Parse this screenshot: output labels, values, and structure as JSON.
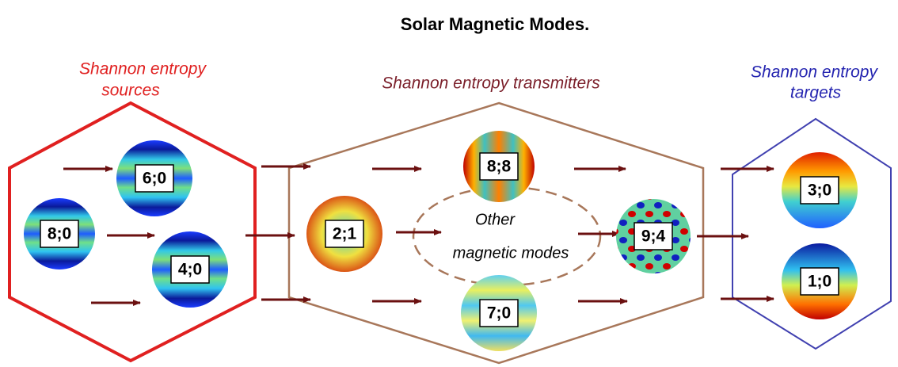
{
  "title": "Solar Magnetic Modes.",
  "groups": [
    {
      "lines": [
        "Shannon entropy",
        "sources"
      ]
    },
    {
      "lines": [
        "Shannon entropy transmitters"
      ]
    },
    {
      "lines": [
        "Shannon entropy",
        "targets"
      ]
    }
  ],
  "nodes": [
    {
      "label": "8;0"
    },
    {
      "label": "6;0"
    },
    {
      "label": "4;0"
    },
    {
      "label": "2;1"
    },
    {
      "label": "8;8"
    },
    {
      "label": "7;0"
    },
    {
      "label": "9;4"
    },
    {
      "label": "3;0"
    },
    {
      "label": "1;0"
    }
  ],
  "other": {
    "lines": [
      "Other",
      "magnetic modes"
    ]
  }
}
